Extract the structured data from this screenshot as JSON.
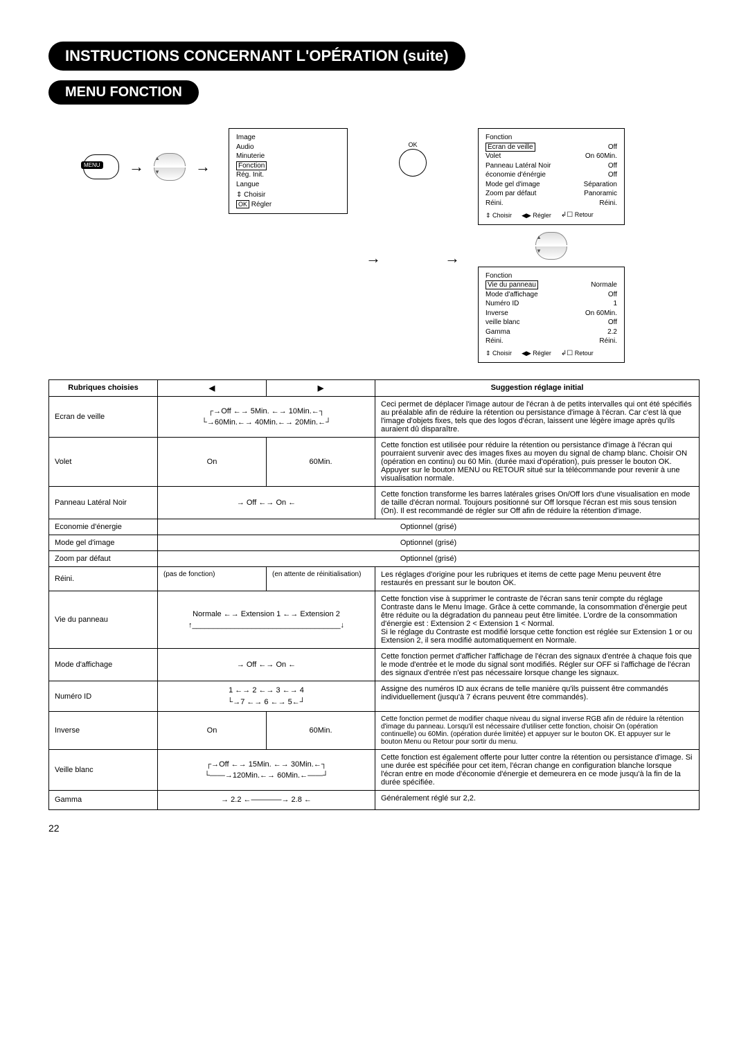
{
  "title_main": "INSTRUCTIONS CONCERNANT L'OPÉRATION (suite)",
  "title_sub": "MENU FONCTION",
  "page_number": "22",
  "remote": {
    "menu": "MENU",
    "ok": "OK"
  },
  "osd_main": {
    "items": [
      "Image",
      "Audio",
      "Minuterie"
    ],
    "selected": "Fonction",
    "items2": [
      "Rég. Init.",
      "Langue"
    ],
    "choose": "Choisir",
    "ok_label": "OK",
    "regler": "Régler"
  },
  "osd_fn1": {
    "title": "Fonction",
    "rows": [
      {
        "l": "Ecran de veille",
        "r": "Off",
        "sel": true
      },
      {
        "l": "Volet",
        "r": "On  60Min."
      },
      {
        "l": "Panneau Latéral Noir",
        "r": "Off"
      },
      {
        "l": "économie d'énérgie",
        "r": "Off"
      },
      {
        "l": "Mode gel d'image",
        "r": "Séparation"
      },
      {
        "l": "Zoom par défaut",
        "r": "Panoramic"
      },
      {
        "l": "Réini.",
        "r": "Réini."
      }
    ],
    "foot_choose": "Choisir",
    "foot_regler": "Régler",
    "foot_retour": "Retour"
  },
  "osd_fn2": {
    "title": "Fonction",
    "rows": [
      {
        "l": "Vie du panneau",
        "r": "Normale",
        "sel": true
      },
      {
        "l": "Mode d'affichage",
        "r": "Off"
      },
      {
        "l": "Numéro ID",
        "r": "1"
      },
      {
        "l": "Inverse",
        "r": "On  60Min."
      },
      {
        "l": "veille blanc",
        "r": "Off"
      },
      {
        "l": "Gamma",
        "r": "2.2"
      },
      {
        "l": "Réini.",
        "r": "Réini."
      }
    ],
    "foot_choose": "Choisir",
    "foot_regler": "Régler",
    "foot_retour": "Retour"
  },
  "table": {
    "head": {
      "c1": "Rubriques choisies",
      "c2": "◀",
      "c3": "▶",
      "c4": "Suggestion réglage initial"
    },
    "rows": {
      "ecran_de_veille": {
        "label": "Ecran de veille",
        "cycle_top": "Off ←→ 5Min. ←→ 10Min.",
        "cycle_bot": "60Min.←→ 40Min.←→ 20Min.",
        "desc": "Ceci permet de déplacer l'image autour de l'écran à de petits intervalles qui ont été spécifiés au préalable afin de réduire la rétention ou persistance d'image à l'écran. Car c'est là que l'image d'objets fixes, tels que des logos d'écran, laissent une légère image après qu'ils auraient dû disparaître."
      },
      "volet": {
        "label": "Volet",
        "opt1": "On",
        "opt2": "60Min.",
        "desc": "Cette fonction est utilisée pour réduire la rétention ou persistance d'image à l'écran qui pourraient survenir avec des images fixes au moyen du signal de champ blanc. Choisir ON (opération en continu) ou 60 Min. (durée maxi d'opération), puis presser le bouton OK. Appuyer sur le bouton MENU ou RETOUR situé sur la télécommande pour revenir à une visualisation normale."
      },
      "panneau": {
        "label": "Panneau Latéral Noir",
        "cycle": "→ Off ←→ On ←",
        "desc": "Cette fonction transforme les barres latérales grises On/Off lors d'une visualisation en mode de taille d'écran normal. Toujours positionné sur Off lorsque l'écran est mis sous tension (On). Il est recommandé de régler sur Off afin de réduire la rétention d'image."
      },
      "economie": {
        "label": "Economie d'énergie",
        "val": "Optionnel (grisé)"
      },
      "mode_gel": {
        "label": "Mode gel d'image",
        "val": "Optionnel (grisé)"
      },
      "zoom": {
        "label": "Zoom par défaut",
        "val": "Optionnel (grisé)"
      },
      "reini": {
        "label": "Réini.",
        "c2": "(pas de fonction)",
        "c3": "(en attente de réinitialisation)",
        "desc": "Les réglages d'origine pour les rubriques et items de cette page Menu peuvent être restaurés en pressant sur le bouton OK."
      },
      "vie": {
        "label": "Vie du panneau",
        "cycle": "Normale ←→ Extension 1 ←→ Extension 2",
        "desc": "Cette fonction vise à supprimer le contraste de l'écran sans tenir compte du réglage Contraste dans le Menu Image. Grâce à cette commande, la consommation d'énergie peut être réduite ou la dégradation du panneau peut être limitée. L'ordre de la consommation d'énergie est : Extension 2 < Extension 1 < Normal.\nSi le réglage du Contraste est modifié lorsque cette fonction est réglée sur Extension 1 or ou Extension 2, il sera modifié automatiquement en Normale."
      },
      "mode_aff": {
        "label": "Mode d'affichage",
        "cycle": "→ Off ←→ On ←",
        "desc": "Cette fonction permet d'afficher l'affichage de l'écran des signaux d'entrée à chaque fois que le mode d'entrée et le mode du signal sont modifiés. Régler sur OFF si l'affichage de l'écran des signaux d'entrée n'est pas nécessaire lorsque change les signaux."
      },
      "numero_id": {
        "label": "Numéro ID",
        "cycle_top": "1 ←→ 2 ←→ 3 ←→ 4",
        "cycle_bot": "7 ←→ 6 ←→ 5",
        "desc": "Assigne des numéros ID aux écrans de telle manière qu'ils puissent être commandés individuellement (jusqu'à 7 écrans peuvent être commandés)."
      },
      "inverse": {
        "label": "Inverse",
        "opt1": "On",
        "opt2": "60Min.",
        "desc": "Cette fonction permet de modifier chaque niveau du signal inverse RGB afin de réduire la rétention d'image du panneau. Lorsqu'il est nécessaire d'utiliser cette fonction, choisir On (opération continuelle) ou 60Min. (opération durée limitée) et appuyer sur le bouton OK. Et appuyer sur le bouton Menu ou Retour pour sortir du menu."
      },
      "veille_blanc": {
        "label": "Veille blanc",
        "cycle_top": "Off ←→ 15Min. ←→ 30Min.",
        "cycle_bot": "120Min.←→ 60Min.",
        "desc": "Cette fonction est également offerte pour lutter contre la rétention ou persistance d'image. Si une durée est spécifiée pour cet item, l'écran change en configuration blanche lorsque l'écran entre en mode d'économie d'énergie et demeurera en ce mode jusqu'à la fin de la durée spécifiée."
      },
      "gamma": {
        "label": "Gamma",
        "cycle": "→ 2.2 ←————→ 2.8 ←",
        "desc": "Généralement réglé sur 2,2."
      }
    }
  }
}
